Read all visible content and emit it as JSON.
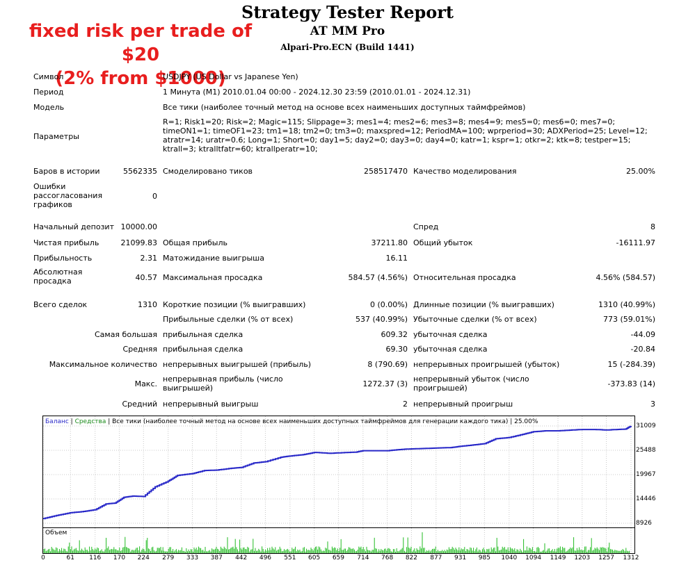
{
  "header": {
    "title": "Strategy Tester Report",
    "expert": "AT MM Pro",
    "server": "Alpari-Pro.ECN (Build 1441)",
    "annotation_line1": "fixed risk per trade of $20",
    "annotation_line2": "(2% from $1000)"
  },
  "info": {
    "symbol_label": "Символ",
    "symbol_value": "USDJPY (US Dollar vs Japanese Yen)",
    "period_label": "Период",
    "period_value": "1 Минута (M1) 2010.01.04 00:00 - 2024.12.30 23:59 (2010.01.01 - 2024.12.31)",
    "model_label": "Модель",
    "model_value": "Все тики (наиболее точный метод на основе всех наименьших доступных таймфреймов)",
    "params_label": "Параметры",
    "params_value": "R=1; Risk1=20; Risk=2; Magic=115; Slippage=3; mes1=4; mes2=6; mes3=8; mes4=9; mes5=0; mes6=0; mes7=0; timeON1=1; timeOF1=23; tm1=18; tm2=0; tm3=0; maxspred=12; PeriodMA=100; wprperiod=30; ADXPeriod=25; Level=12; atratr=14; uratr=0.6; Long=1; Short=0; day1=5; day2=0; day3=0; day4=0; katr=1; kspr=1; otkr=2; ktk=8; testper=15; ktrall=3; ktralltfatr=60; ktrallperatr=10;"
  },
  "stats": {
    "bars_label": "Баров в истории",
    "bars_value": "5562335",
    "ticks_label": "Смоделировано тиков",
    "ticks_value": "258517470",
    "quality_label": "Качество моделирования",
    "quality_value": "25.00%",
    "errors_label": "Ошибки рассогласования графиков",
    "errors_value": "0",
    "deposit_label": "Начальный депозит",
    "deposit_value": "10000.00",
    "spread_label": "Спред",
    "spread_value": "8",
    "net_label": "Чистая прибыль",
    "net_value": "21099.83",
    "gross_profit_label": "Общая прибыль",
    "gross_profit_value": "37211.80",
    "gross_loss_label": "Общий убыток",
    "gross_loss_value": "-16111.97",
    "pf_label": "Прибыльность",
    "pf_value": "2.31",
    "expect_label": "Матожидание выигрыша",
    "expect_value": "16.11",
    "abs_dd_label": "Абсолютная просадка",
    "abs_dd_value": "40.57",
    "max_dd_label": "Максимальная просадка",
    "max_dd_value": "584.57 (4.56%)",
    "rel_dd_label": "Относительная просадка",
    "rel_dd_value": "4.56% (584.57)",
    "total_label": "Всего сделок",
    "total_value": "1310",
    "short_label": "Короткие позиции (% выигравших)",
    "short_value": "0 (0.00%)",
    "long_label": "Длинные позиции (% выигравших)",
    "long_value": "1310 (40.99%)",
    "win_label": "Прибыльные сделки (% от всех)",
    "win_value": "537 (40.99%)",
    "loss_label": "Убыточные сделки (% от всех)",
    "loss_value": "773 (59.01%)",
    "largest_label": "Самая большая",
    "largest_win_label": "прибыльная сделка",
    "largest_win_value": "609.32",
    "largest_loss_label": "убыточная сделка",
    "largest_loss_value": "-44.09",
    "average_label": "Средняя",
    "avg_win_label": "прибыльная сделка",
    "avg_win_value": "69.30",
    "avg_loss_label": "убыточная сделка",
    "avg_loss_value": "-20.84",
    "maxcount_label": "Максимальное количество",
    "cons_wins_label": "непрерывных выигрышей (прибыль)",
    "cons_wins_value": "8 (790.69)",
    "cons_losses_label": "непрерывных проигрышей (убыток)",
    "cons_losses_value": "15 (-284.39)",
    "max_label": "Макс.",
    "cons_profit_label": "непрерывная прибыль (число выигрышей)",
    "cons_profit_value": "1272.37 (3)",
    "cons_loss_label": "непрерывный убыток (число проигрышей)",
    "cons_loss_value": "-373.83 (14)",
    "avgcons_label": "Средний",
    "avg_cons_win_label": "непрерывный выигрыш",
    "avg_cons_win_value": "2",
    "avg_cons_loss_label": "непрерывный проигрыш",
    "avg_cons_loss_value": "3"
  },
  "chart_data": {
    "type": "line",
    "legend": {
      "balance": "Баланс",
      "separator": " | ",
      "equity": "Средства",
      "rest": " | Все тики (наиболее точный метод на основе всех наименьших доступных таймфреймов для генерации каждого тика) | 25.00%"
    },
    "colors": {
      "balance": "#2828c8",
      "equity": "#1a8a1a",
      "volume": "#22bb22"
    },
    "volume_label": "Объем",
    "y_ticks": [
      "31009",
      "25488",
      "19967",
      "14446",
      "8926"
    ],
    "ylim": [
      8926,
      31009
    ],
    "x_ticks": [
      "0",
      "61",
      "116",
      "170",
      "224",
      "279",
      "333",
      "387",
      "442",
      "496",
      "551",
      "605",
      "659",
      "714",
      "768",
      "822",
      "877",
      "931",
      "985",
      "1040",
      "1094",
      "1149",
      "1203",
      "1257",
      "1312"
    ],
    "xlim": [
      0,
      1312
    ],
    "balance": [
      [
        0,
        10000
      ],
      [
        30,
        10700
      ],
      [
        60,
        11300
      ],
      [
        90,
        11600
      ],
      [
        116,
        12000
      ],
      [
        140,
        13300
      ],
      [
        160,
        13500
      ],
      [
        180,
        14800
      ],
      [
        200,
        15100
      ],
      [
        224,
        15000
      ],
      [
        250,
        17200
      ],
      [
        279,
        18500
      ],
      [
        300,
        19800
      ],
      [
        333,
        20200
      ],
      [
        360,
        20900
      ],
      [
        387,
        21000
      ],
      [
        420,
        21400
      ],
      [
        442,
        21600
      ],
      [
        470,
        22600
      ],
      [
        496,
        22900
      ],
      [
        530,
        23900
      ],
      [
        551,
        24200
      ],
      [
        580,
        24500
      ],
      [
        605,
        25000
      ],
      [
        640,
        24800
      ],
      [
        659,
        24900
      ],
      [
        700,
        25100
      ],
      [
        714,
        25400
      ],
      [
        768,
        25400
      ],
      [
        800,
        25700
      ],
      [
        822,
        25800
      ],
      [
        850,
        25900
      ],
      [
        877,
        26000
      ],
      [
        910,
        26100
      ],
      [
        931,
        26400
      ],
      [
        960,
        26700
      ],
      [
        985,
        27000
      ],
      [
        1010,
        28100
      ],
      [
        1040,
        28400
      ],
      [
        1070,
        29100
      ],
      [
        1094,
        29700
      ],
      [
        1120,
        29900
      ],
      [
        1149,
        29900
      ],
      [
        1180,
        30100
      ],
      [
        1203,
        30200
      ],
      [
        1230,
        30200
      ],
      [
        1257,
        30100
      ],
      [
        1280,
        30200
      ],
      [
        1300,
        30300
      ],
      [
        1312,
        31000
      ]
    ]
  }
}
